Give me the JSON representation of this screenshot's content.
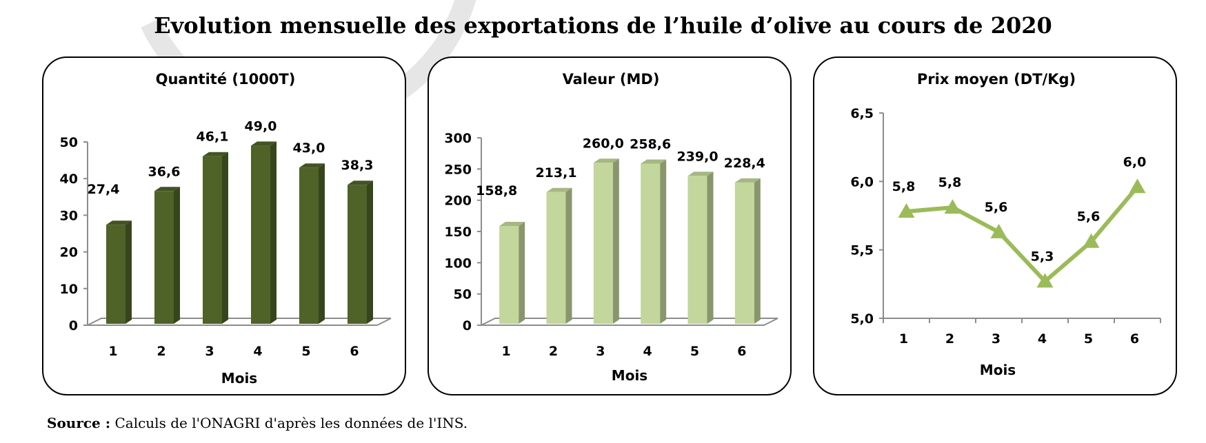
{
  "title": "Evolution mensuelle des exportations de l’huile d’olive au cours de 2020",
  "source": {
    "label": "Source :",
    "text": "Calculs de l'ONAGRI  d'après les données de l'INS."
  },
  "colors": {
    "quantite": "#4f6228",
    "valeur": "#c3d69b",
    "prix": "#9bbb59"
  },
  "chart_data": [
    {
      "type": "bar",
      "title": "Quantité (1000T)",
      "xlabel": "Mois",
      "ylabel": "",
      "categories": [
        "1",
        "2",
        "3",
        "4",
        "5",
        "6"
      ],
      "values": [
        27.4,
        36.6,
        46.1,
        49.0,
        43.0,
        38.3
      ],
      "value_labels": [
        "27,4",
        "36,6",
        "46,1",
        "49,0",
        "43,0",
        "38,3"
      ],
      "yticks": [
        "0",
        "10",
        "20",
        "30",
        "40",
        "50"
      ],
      "ylim": [
        0,
        50
      ],
      "grid": false,
      "legend": "none",
      "style": "3d-column"
    },
    {
      "type": "bar",
      "title": "Valeur (MD)",
      "xlabel": "Mois",
      "ylabel": "",
      "categories": [
        "1",
        "2",
        "3",
        "4",
        "5",
        "6"
      ],
      "values": [
        158.8,
        213.1,
        260.0,
        258.6,
        239.0,
        228.4
      ],
      "value_labels": [
        "158,8",
        "213,1",
        "260,0",
        "258,6",
        "239,0",
        "228,4"
      ],
      "yticks": [
        "0",
        "50",
        "100",
        "150",
        "200",
        "250",
        "300"
      ],
      "ylim": [
        0,
        300
      ],
      "grid": false,
      "legend": "none",
      "style": "3d-column"
    },
    {
      "type": "line",
      "title": "Prix moyen (DT/Kg)",
      "xlabel": "Mois",
      "ylabel": "",
      "categories": [
        "1",
        "2",
        "3",
        "4",
        "5",
        "6"
      ],
      "values": [
        5.78,
        5.81,
        5.63,
        5.27,
        5.56,
        5.96
      ],
      "value_labels": [
        "5,8",
        "5,8",
        "5,6",
        "5,3",
        "5,6",
        "6,0"
      ],
      "yticks": [
        "5,0",
        "5,5",
        "6,0",
        "6,5"
      ],
      "ylim": [
        5.0,
        6.5
      ],
      "grid": false,
      "legend": "none",
      "marker": "triangle"
    }
  ]
}
